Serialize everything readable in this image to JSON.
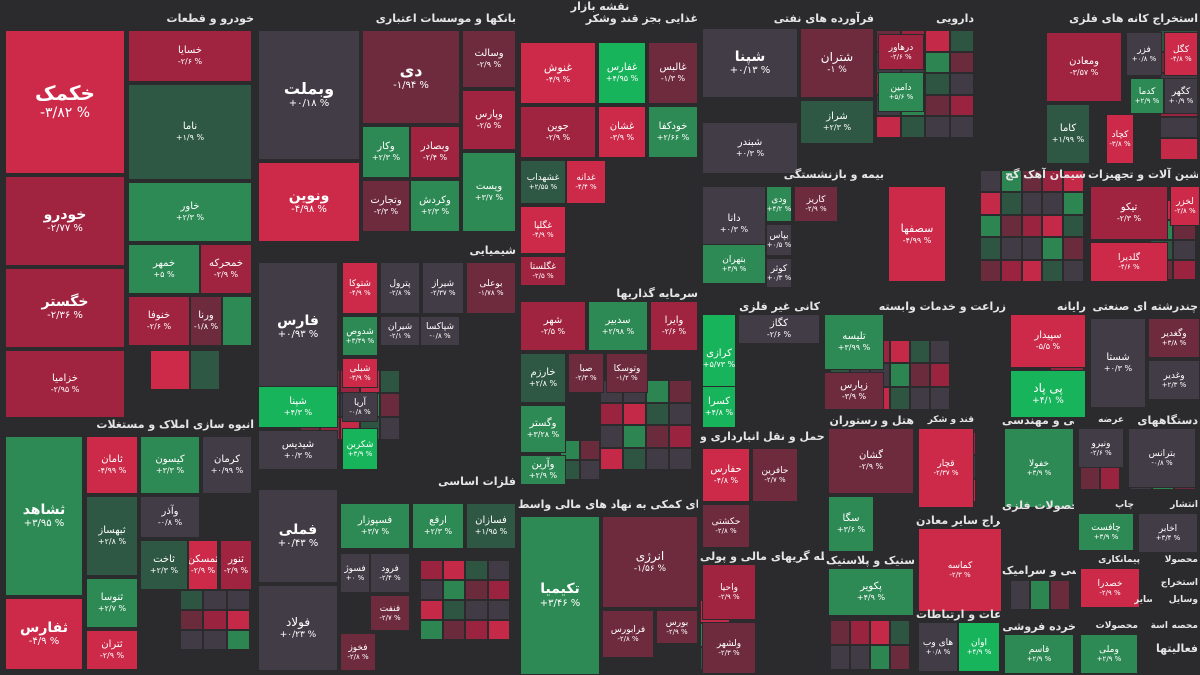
{
  "chart_data": {
    "type": "treemap",
    "title": "نقشه بازار",
    "colors": {
      "neg3": "#cd2a4a",
      "neg2": "#a02440",
      "neg1": "#6e2b3d",
      "zero": "#423c47",
      "pos1": "#2e5844",
      "pos2": "#2e8a55",
      "pos3": "#17b45c"
    },
    "sectors": [
      {
        "name": "خودرو و قطعات",
        "tiles": [
          {
            "name": "خکمک",
            "change": "-۳/۸۲ %",
            "level": -3
          },
          {
            "name": "خسایا",
            "change": "-۲/۶ %",
            "level": -2
          },
          {
            "name": "خودرو",
            "change": "-۲/۷۷ %",
            "level": -2
          },
          {
            "name": "ناما",
            "change": "+۱/۹ %",
            "level": 1
          },
          {
            "name": "خاور",
            "change": "+۲/۳ %",
            "level": 2
          },
          {
            "name": "خگستر",
            "change": "-۲/۳۶ %",
            "level": -2
          },
          {
            "name": "خمهر",
            "change": "+۵ %",
            "level": 2
          },
          {
            "name": "خمحرکه",
            "change": "-۲/۹ %",
            "level": -2
          },
          {
            "name": "خزامیا",
            "change": "-۲/۹۵ %",
            "level": -2
          },
          {
            "name": "خنوفا",
            "change": "-۲/۶ %",
            "level": -2
          },
          {
            "name": "ورنا",
            "change": "-۱/۸ %",
            "level": -1
          },
          {
            "name": "",
            "change": "",
            "level": -3
          },
          {
            "name": "",
            "change": "",
            "level": 1
          },
          {
            "name": "",
            "change": "",
            "level": 2
          }
        ]
      },
      {
        "name": "انبوه سازی املاک و مستغلات",
        "tiles": [
          {
            "name": "ثشاهد",
            "change": "+۳/۹۵ %",
            "level": 2
          },
          {
            "name": "ثامان",
            "change": "-۴/۹۹ %",
            "level": -3
          },
          {
            "name": "کیسون",
            "change": "+۳/۳ %",
            "level": 2
          },
          {
            "name": "کرمان",
            "change": "+۰/۹۹ %",
            "level": 0
          },
          {
            "name": "ثبهساز",
            "change": "+۲/۸ %",
            "level": 1
          },
          {
            "name": "وآذر",
            "change": "-۰/۸ %",
            "level": 0
          },
          {
            "name": "ثفارس",
            "change": "-۴/۹ %",
            "level": -3
          },
          {
            "name": "ثنوسا",
            "change": "+۲/۷ %",
            "level": 2
          },
          {
            "name": "ثاخت",
            "change": "+۲/۳ %",
            "level": 1
          },
          {
            "name": "ثمسکن",
            "change": "-۲/۹ %",
            "level": -3
          },
          {
            "name": "ثنور",
            "change": "-۲/۹ %",
            "level": -2
          },
          {
            "name": "ثتران",
            "change": "-۲/۹ %",
            "level": -3
          }
        ]
      },
      {
        "name": "بانکها و موسسات اعتباری",
        "tiles": [
          {
            "name": "وبملت",
            "change": "+۰/۱۸ %",
            "level": 0
          },
          {
            "name": "دی",
            "change": "-۱/۹۴ %",
            "level": -1
          },
          {
            "name": "وسالت",
            "change": "-۲/۹ %",
            "level": -1
          },
          {
            "name": "ونوین",
            "change": "-۴/۹۸ %",
            "level": -3
          },
          {
            "name": "وکار",
            "change": "+۲/۳ %",
            "level": 2
          },
          {
            "name": "وبصادر",
            "change": "-۲/۴ %",
            "level": -2
          },
          {
            "name": "وپارس",
            "change": "-۲/۵ %",
            "level": -2
          },
          {
            "name": "وکردش",
            "change": "+۲/۳ %",
            "level": 2
          },
          {
            "name": "وتجارت",
            "change": "-۲/۳ %",
            "level": -1
          },
          {
            "name": "ویست",
            "change": "+۳/۷ %",
            "level": 2
          }
        ]
      },
      {
        "name": "شیمیایی",
        "tiles": [
          {
            "name": "فارس",
            "change": "+۰/۹۳ %",
            "level": 0
          },
          {
            "name": "شتوکا",
            "change": "-۴/۹ %",
            "level": -3
          },
          {
            "name": "پترول",
            "change": "-۲/۸ %",
            "level": 0
          },
          {
            "name": "شیراز",
            "change": "-۲/۳۷ %",
            "level": 0
          },
          {
            "name": "بوعلی",
            "change": "-۱/۷۸ %",
            "level": -1
          },
          {
            "name": "شدوص",
            "change": "+۳/۴۹ %",
            "level": 2
          },
          {
            "name": "شیران",
            "change": "-۲/۱ %",
            "level": 0
          },
          {
            "name": "شپاکسا",
            "change": "-۰/۸ %",
            "level": 0
          },
          {
            "name": "شپنا",
            "change": "+۴/۳ %",
            "level": 3
          },
          {
            "name": "شبلی",
            "change": "-۳/۹ %",
            "level": -3
          },
          {
            "name": "آریا",
            "change": "-۰/۸ %",
            "level": 0
          },
          {
            "name": "شیدیس",
            "change": "+۰/۳ %",
            "level": 0
          },
          {
            "name": "شکربن",
            "change": "+۳/۹ %",
            "level": 3
          }
        ]
      },
      {
        "name": "فلزات اساسی",
        "tiles": [
          {
            "name": "فملی",
            "change": "+۰/۴۳ %",
            "level": 0
          },
          {
            "name": "فسپوزار",
            "change": "+۳/۷ %",
            "level": 2
          },
          {
            "name": "ارفع",
            "change": "+۲/۳ %",
            "level": 2
          },
          {
            "name": "فسازان",
            "change": "+۱/۹۵ %",
            "level": 1
          },
          {
            "name": "فولاد",
            "change": "+۰/۲۳ %",
            "level": 0
          },
          {
            "name": "فسوژ",
            "change": "+۰ %",
            "level": 0
          },
          {
            "name": "فرود",
            "change": "-۲/۴ %",
            "level": 0
          },
          {
            "name": "فنفت",
            "change": "-۲/۷ %",
            "level": -1
          },
          {
            "name": "فخوز",
            "change": "-۲/۸ %",
            "level": -1
          }
        ]
      },
      {
        "name": "غذایی بجز قند وشکر",
        "tiles": [
          {
            "name": "غنوش",
            "change": "-۴/۹ %",
            "level": -3
          },
          {
            "name": "غفارس",
            "change": "+۴/۹۵ %",
            "level": 3
          },
          {
            "name": "غالبس",
            "change": "-۱/۳ %",
            "level": -1
          },
          {
            "name": "جوین",
            "change": "-۲/۹ %",
            "level": -2
          },
          {
            "name": "غشان",
            "change": "-۳/۹ %",
            "level": -3
          },
          {
            "name": "خودکفا",
            "change": "+۲/۶۶ %",
            "level": 2
          },
          {
            "name": "غشهداب",
            "change": "+۲/۵۵ %",
            "level": 1
          },
          {
            "name": "غدانه",
            "change": "-۴/۴ %",
            "level": -3
          },
          {
            "name": "غگلپا",
            "change": "-۴/۹ %",
            "level": -3
          },
          {
            "name": "غگلستا",
            "change": "-۲/۵ %",
            "level": -2
          }
        ]
      },
      {
        "name": "سرمایه گذاریها",
        "tiles": [
          {
            "name": "شهر",
            "change": "-۲/۵ %",
            "level": -2
          },
          {
            "name": "سدبیر",
            "change": "+۲/۹۸ %",
            "level": 2
          },
          {
            "name": "وایرا",
            "change": "-۲/۶ %",
            "level": -2
          },
          {
            "name": "خارزم",
            "change": "+۲/۸ %",
            "level": 1
          },
          {
            "name": "صبا",
            "change": "-۲/۳ %",
            "level": -1
          },
          {
            "name": "وتوسکا",
            "change": "-۱/۲ %",
            "level": -1
          },
          {
            "name": "وگستر",
            "change": "+۳/۲۸ %",
            "level": 2
          },
          {
            "name": "وآرین",
            "change": "+۲/۹ %",
            "level": 2
          }
        ]
      },
      {
        "name": "فعالیتهای کمکی به نهاد های مالی واسط",
        "tiles": [
          {
            "name": "تکیمیا",
            "change": "+۳/۴۶ %",
            "level": 2
          },
          {
            "name": "انرژی",
            "change": "-۱/۵۶ %",
            "level": -1
          },
          {
            "name": "بورس",
            "change": "-۲/۹ %",
            "level": -1
          },
          {
            "name": "فرابورس",
            "change": "-۲/۸ %",
            "level": -1
          }
        ]
      },
      {
        "name": "فرآورده های نفتی",
        "tiles": [
          {
            "name": "شپنا",
            "change": "+۰/۱۳ %",
            "level": 0
          },
          {
            "name": "شتران",
            "change": "-۱ %",
            "level": -1
          },
          {
            "name": "شراز",
            "change": "+۲/۳ %",
            "level": 1
          },
          {
            "name": "شبندر",
            "change": "+۰/۳ %",
            "level": 0
          }
        ]
      },
      {
        "name": "دارویی",
        "tiles": [
          {
            "name": "درهاور",
            "change": "-۲/۶ %",
            "level": -2
          },
          {
            "name": "دامین",
            "change": "+۵/۶ %",
            "level": 2
          }
        ]
      },
      {
        "name": "استخراج کانه های فلزی",
        "tiles": [
          {
            "name": "کگل",
            "change": "-۴/۸ %",
            "level": -3
          },
          {
            "name": "فزر",
            "change": "+۰/۸ %",
            "level": 0
          },
          {
            "name": "ومعادن",
            "change": "-۳/۵۷ %",
            "level": -2
          },
          {
            "name": "کدما",
            "change": "+۲/۹ %",
            "level": 2
          },
          {
            "name": "کگهر",
            "change": "+۰/۹ %",
            "level": 0
          },
          {
            "name": "کاما",
            "change": "+۱/۹۹ %",
            "level": 1
          },
          {
            "name": "کچاد",
            "change": "-۳/۸ %",
            "level": -3
          }
        ]
      },
      {
        "name": "بیمه و بازنشستگی",
        "tiles": [
          {
            "name": "دانا",
            "change": "+۰/۳ %",
            "level": 0
          },
          {
            "name": "ودی",
            "change": "+۴/۲ %",
            "level": 2
          },
          {
            "name": "کاریز",
            "change": "-۲/۹ %",
            "level": -1
          },
          {
            "name": "بپاس",
            "change": "+۰/۵ %",
            "level": 0
          },
          {
            "name": "کوثر",
            "change": "+۰/۳ %",
            "level": 0
          },
          {
            "name": "بتهران",
            "change": "+۳/۹ %",
            "level": 2
          }
        ]
      },
      {
        "name": "سیمان آهک گچ",
        "tiles": [
          {
            "name": "سصفها",
            "change": "-۴/۹۹ %",
            "level": -3
          }
        ]
      },
      {
        "name": "ماشین آلات و تجهیزات",
        "tiles": [
          {
            "name": "لخزر",
            "change": "-۲/۸ %",
            "level": -3
          },
          {
            "name": "تیکو",
            "change": "-۲/۳ %",
            "level": -2
          },
          {
            "name": "گلدیرا",
            "change": "-۴/۶ %",
            "level": -3
          }
        ]
      },
      {
        "name": "کانی غیر فلزی",
        "tiles": [
          {
            "name": "کگاز",
            "change": "-۲/۶ %",
            "level": 0
          },
          {
            "name": "کرازی",
            "change": "+۵/۷۳ %",
            "level": 3
          },
          {
            "name": "کسرا",
            "change": "+۴/۸ %",
            "level": 3
          }
        ]
      },
      {
        "name": "زراعت و خدمات وابسته",
        "tiles": [
          {
            "name": "تلیسه",
            "change": "+۳/۹۹ %",
            "level": 2
          },
          {
            "name": "زپارس",
            "change": "-۳/۹ %",
            "level": -1
          }
        ]
      },
      {
        "name": "رایانه",
        "tiles": [
          {
            "name": "سپیدار",
            "change": "-۵/۵ %",
            "level": -3
          },
          {
            "name": "پی پاد",
            "change": "+۴/۱ %",
            "level": 3
          }
        ]
      },
      {
        "name": "چندرشته ای صنعتی",
        "tiles": [
          {
            "name": "وگغدیر",
            "change": "+۳/۸ %",
            "level": -1
          },
          {
            "name": "شستا",
            "change": "+۰/۳ %",
            "level": 0
          },
          {
            "name": "وغدیر",
            "change": "+۲/۳ %",
            "level": 0
          }
        ]
      },
      {
        "name": "حمل و نقل انبارداری و",
        "tiles": [
          {
            "name": "حفارس",
            "change": "-۴/۸ %",
            "level": -3
          },
          {
            "name": "حافرین",
            "change": "-۲/۷ %",
            "level": -1
          },
          {
            "name": "حکشتی",
            "change": "-۲/۸ %",
            "level": -1
          }
        ]
      },
      {
        "name": "هتل و رستوران",
        "tiles": [
          {
            "name": "گشان",
            "change": "-۲/۹ %",
            "level": -1
          },
          {
            "name": "سگا",
            "change": "+۳/۶ %",
            "level": 2
          }
        ]
      },
      {
        "name": "قند و شکر",
        "tiles": [
          {
            "name": "قچار",
            "change": "-۲/۳۷ %",
            "level": -3
          }
        ]
      },
      {
        "name": "فنی و مهندسی",
        "tiles": [
          {
            "name": "خفولا",
            "change": "+۳/۹ %",
            "level": 2
          }
        ]
      },
      {
        "name": "عرضه",
        "tiles": [
          {
            "name": "ونیرو",
            "change": "-۲/۶ %",
            "level": 0
          }
        ]
      },
      {
        "name": "دستگاههای",
        "tiles": [
          {
            "name": "بترانس",
            "change": "-۰/۸ %",
            "level": 0
          }
        ]
      },
      {
        "name": "استخراج سایر معادن",
        "tiles": [
          {
            "name": "کماسه",
            "change": "-۲/۳ %",
            "level": -3
          }
        ]
      },
      {
        "name": "محصولات فلزی",
        "tiles": []
      },
      {
        "name": "چاپ",
        "tiles": [
          {
            "name": "چافست",
            "change": "+۳/۹ %",
            "level": 2
          }
        ]
      },
      {
        "name": "انتشار",
        "tiles": [
          {
            "name": "اخابر",
            "change": "+۳/۴ %",
            "level": 0
          }
        ]
      },
      {
        "name": "واسطه گریهای مالی و پولی",
        "tiles": [
          {
            "name": "واحیا",
            "change": "-۲/۹ %",
            "level": -2
          },
          {
            "name": "ولشهر",
            "change": "-۲/۳ %",
            "level": -1
          }
        ]
      },
      {
        "name": "لاستیک و پلاستیک",
        "tiles": [
          {
            "name": "پکویر",
            "change": "+۴/۹ %",
            "level": 2
          }
        ]
      },
      {
        "name": "کاشی و سرامیک",
        "tiles": []
      },
      {
        "name": "پیمانکاری",
        "tiles": [
          {
            "name": "خصدرا",
            "change": "-۲/۹ %",
            "level": -3
          }
        ]
      },
      {
        "name": "محصولا",
        "tiles": []
      },
      {
        "name": "استخراج",
        "tiles": []
      },
      {
        "name": "اطلاعات و ارتباطات",
        "tiles": [
          {
            "name": "های وب",
            "change": "+۰/۸ %",
            "level": 0
          },
          {
            "name": "اوان",
            "change": "+۴/۹ %",
            "level": 3
          }
        ]
      },
      {
        "name": "خرده فروشی",
        "tiles": [
          {
            "name": "قاسم",
            "change": "+۲/۹ %",
            "level": 2
          }
        ]
      },
      {
        "name": "محصولات",
        "tiles": [
          {
            "name": "وملی",
            "change": "+۲/۹ %",
            "level": 2
          }
        ]
      },
      {
        "name": "وسایل",
        "tiles": []
      },
      {
        "name": "ساير",
        "tiles": []
      },
      {
        "name": "محصه",
        "tiles": []
      },
      {
        "name": "اسة",
        "tiles": []
      },
      {
        "name": "فعالیتها",
        "tiles": []
      }
    ]
  }
}
